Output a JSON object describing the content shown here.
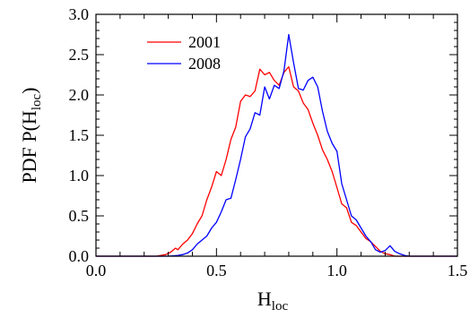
{
  "chart_data": {
    "type": "line",
    "xlabel": {
      "main": "H",
      "sub": "loc"
    },
    "ylabel": {
      "prefix": "PDF P(H",
      "sub": "loc",
      "suffix": ")"
    },
    "xlim": [
      0.0,
      1.5
    ],
    "ylim": [
      0.0,
      3.0
    ],
    "xticks": [
      "0.0",
      "0.5",
      "1.0",
      "1.5"
    ],
    "yticks": [
      "0.0",
      "0.5",
      "1.0",
      "1.5",
      "2.0",
      "2.5",
      "3.0"
    ],
    "grid": false,
    "legend_position": "top-left",
    "series": [
      {
        "name": "2001",
        "color": "#ff0000",
        "x": [
          0.0,
          0.25,
          0.29,
          0.31,
          0.33,
          0.34,
          0.36,
          0.38,
          0.4,
          0.42,
          0.44,
          0.46,
          0.48,
          0.5,
          0.52,
          0.54,
          0.56,
          0.58,
          0.6,
          0.62,
          0.64,
          0.66,
          0.68,
          0.7,
          0.72,
          0.74,
          0.76,
          0.78,
          0.8,
          0.82,
          0.84,
          0.86,
          0.88,
          0.9,
          0.92,
          0.94,
          0.96,
          0.98,
          1.0,
          1.02,
          1.04,
          1.06,
          1.08,
          1.1,
          1.12,
          1.14,
          1.16,
          1.18,
          1.2,
          1.22,
          1.24,
          1.26,
          1.3,
          1.5
        ],
        "y": [
          0.0,
          0.0,
          0.02,
          0.05,
          0.1,
          0.08,
          0.15,
          0.2,
          0.28,
          0.4,
          0.5,
          0.7,
          0.86,
          1.05,
          1.0,
          1.2,
          1.45,
          1.6,
          1.92,
          2.0,
          1.98,
          2.05,
          2.32,
          2.25,
          2.28,
          2.18,
          2.12,
          2.28,
          2.35,
          2.1,
          2.05,
          1.9,
          1.82,
          1.65,
          1.5,
          1.32,
          1.2,
          1.05,
          0.85,
          0.65,
          0.6,
          0.42,
          0.38,
          0.3,
          0.22,
          0.18,
          0.12,
          0.06,
          0.03,
          0.02,
          0.0,
          0.0,
          0.0,
          0.0
        ]
      },
      {
        "name": "2008",
        "color": "#0000ff",
        "x": [
          0.0,
          0.3,
          0.34,
          0.36,
          0.38,
          0.4,
          0.42,
          0.44,
          0.46,
          0.48,
          0.5,
          0.52,
          0.54,
          0.56,
          0.58,
          0.6,
          0.62,
          0.64,
          0.66,
          0.68,
          0.7,
          0.72,
          0.74,
          0.76,
          0.78,
          0.8,
          0.82,
          0.84,
          0.86,
          0.88,
          0.9,
          0.92,
          0.94,
          0.96,
          0.98,
          1.0,
          1.02,
          1.04,
          1.06,
          1.08,
          1.1,
          1.12,
          1.14,
          1.16,
          1.18,
          1.2,
          1.22,
          1.24,
          1.26,
          1.28,
          1.3,
          1.34,
          1.5
        ],
        "y": [
          0.0,
          0.0,
          0.01,
          0.02,
          0.04,
          0.08,
          0.15,
          0.2,
          0.25,
          0.35,
          0.42,
          0.55,
          0.7,
          0.72,
          0.95,
          1.2,
          1.48,
          1.58,
          1.78,
          1.75,
          2.1,
          1.95,
          2.12,
          2.08,
          2.3,
          2.75,
          2.4,
          2.08,
          2.06,
          2.18,
          2.22,
          2.1,
          1.8,
          1.55,
          1.4,
          1.3,
          0.9,
          0.7,
          0.5,
          0.45,
          0.35,
          0.25,
          0.18,
          0.08,
          0.05,
          0.07,
          0.13,
          0.06,
          0.03,
          0.01,
          0.0,
          0.0,
          0.0
        ]
      }
    ]
  }
}
